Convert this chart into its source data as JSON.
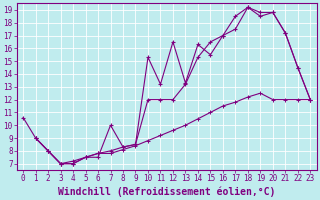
{
  "xlabel": "Windchill (Refroidissement éolien,°C)",
  "background_color": "#c0ecee",
  "grid_color": "#a0d0d4",
  "line_color": "#800080",
  "xlim": [
    -0.5,
    23.5
  ],
  "ylim": [
    6.5,
    19.5
  ],
  "yticks": [
    7,
    8,
    9,
    10,
    11,
    12,
    13,
    14,
    15,
    16,
    17,
    18,
    19
  ],
  "xticks": [
    0,
    1,
    2,
    3,
    4,
    5,
    6,
    7,
    8,
    9,
    10,
    11,
    12,
    13,
    14,
    15,
    16,
    17,
    18,
    19,
    20,
    21,
    22,
    23
  ],
  "line1_x": [
    0,
    1,
    2,
    3,
    4,
    5,
    6,
    7,
    8,
    9,
    10,
    11,
    12,
    13,
    14,
    15,
    16,
    17,
    18,
    19,
    20,
    21,
    22,
    23
  ],
  "line1_y": [
    10.6,
    9.0,
    8.0,
    7.0,
    7.0,
    7.5,
    7.5,
    10.0,
    8.3,
    8.5,
    15.3,
    13.2,
    16.5,
    13.3,
    16.3,
    15.5,
    17.0,
    17.5,
    19.2,
    18.8,
    18.8,
    17.2,
    14.5,
    12.0
  ],
  "line2_x": [
    1,
    2,
    3,
    4,
    5,
    6,
    7,
    8,
    9,
    10,
    11,
    12,
    13,
    14,
    15,
    16,
    17,
    18,
    19,
    20,
    21,
    22,
    23
  ],
  "line2_y": [
    9.0,
    8.0,
    7.0,
    7.0,
    7.5,
    7.8,
    8.0,
    8.3,
    8.5,
    12.0,
    12.0,
    12.0,
    13.2,
    15.3,
    16.5,
    17.0,
    18.5,
    19.2,
    18.5,
    18.8,
    17.2,
    14.5,
    12.0
  ],
  "line3_x": [
    1,
    2,
    3,
    4,
    5,
    6,
    7,
    8,
    9,
    10,
    11,
    12,
    13,
    14,
    15,
    16,
    17,
    18,
    19,
    20,
    21,
    22,
    23
  ],
  "line3_y": [
    9.0,
    8.0,
    7.0,
    7.2,
    7.5,
    7.8,
    7.8,
    8.1,
    8.4,
    8.8,
    9.2,
    9.6,
    10.0,
    10.5,
    11.0,
    11.5,
    11.8,
    12.2,
    12.5,
    12.0,
    12.0,
    12.0,
    12.0
  ],
  "tick_fontsize": 5.5,
  "xlabel_fontsize": 7.0
}
